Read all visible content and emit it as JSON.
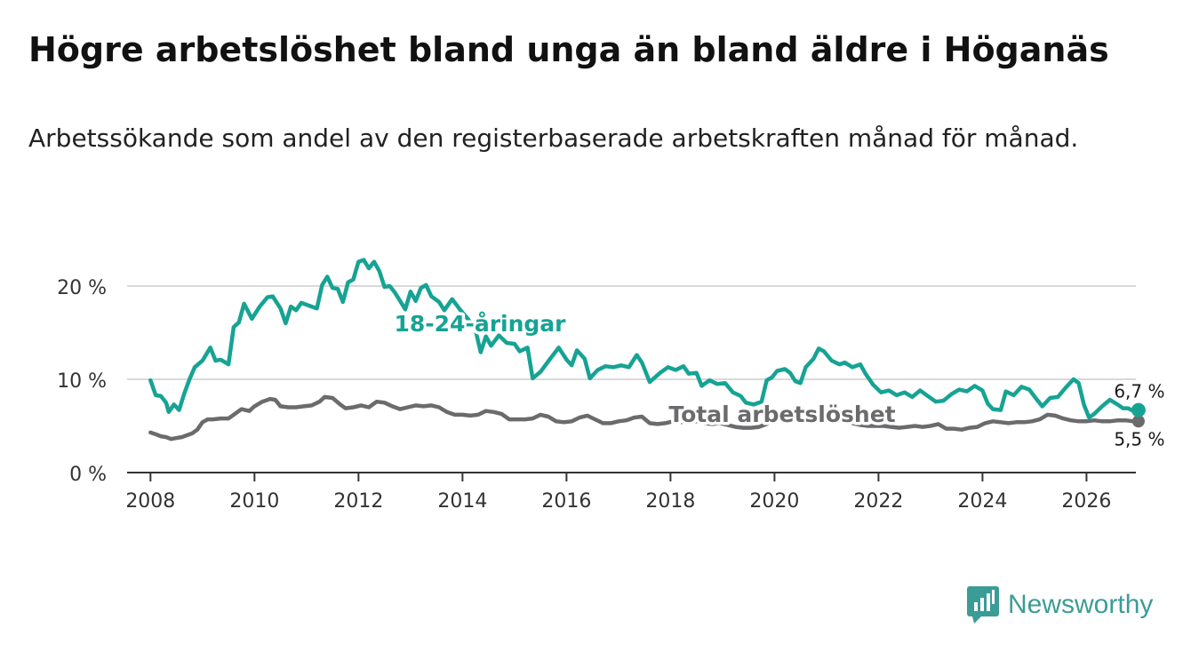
{
  "title": "Högre arbetslöshet bland unga än bland äldre i Höganäs",
  "subtitle": "Arbetssökande som andel av den registerbaserade arbetskraften månad för månad.",
  "brand": {
    "name": "Newsworthy"
  },
  "colors": {
    "youth": "#16a394",
    "total": "#6b6b6e",
    "grid": "#d9d9d9",
    "axis": "#333333",
    "brand": "#3b9c96"
  },
  "chart_data": {
    "type": "line",
    "title": "Högre arbetslöshet bland unga än bland äldre i Höganäs",
    "xlabel": "",
    "ylabel": "",
    "xlim": [
      2007.55,
      2026.95
    ],
    "ylim": [
      0,
      20
    ],
    "x_ticks": [
      2008,
      2010,
      2012,
      2014,
      2016,
      2018,
      2020,
      2022,
      2024,
      2026
    ],
    "y_ticks": [
      {
        "value": 0,
        "label": "0 %"
      },
      {
        "value": 10,
        "label": "10 %"
      },
      {
        "value": 20,
        "label": "20 %"
      }
    ],
    "grid": true,
    "series": [
      {
        "name": "18-24-åringar",
        "color": "#16a394",
        "last_label": "6,7 %",
        "points": [
          [
            2008.0,
            9.9
          ],
          [
            2008.1,
            8.3
          ],
          [
            2008.2,
            8.2
          ],
          [
            2008.3,
            7.5
          ],
          [
            2008.35,
            6.5
          ],
          [
            2008.45,
            7.3
          ],
          [
            2008.55,
            6.7
          ],
          [
            2008.65,
            8.5
          ],
          [
            2008.75,
            10.0
          ],
          [
            2008.85,
            11.3
          ],
          [
            2009.0,
            12.0
          ],
          [
            2009.15,
            13.4
          ],
          [
            2009.25,
            12.0
          ],
          [
            2009.35,
            12.1
          ],
          [
            2009.5,
            11.6
          ],
          [
            2009.6,
            15.6
          ],
          [
            2009.7,
            16.1
          ],
          [
            2009.8,
            18.1
          ],
          [
            2009.95,
            16.5
          ],
          [
            2010.1,
            17.8
          ],
          [
            2010.25,
            18.8
          ],
          [
            2010.35,
            18.9
          ],
          [
            2010.5,
            17.6
          ],
          [
            2010.6,
            16.0
          ],
          [
            2010.7,
            17.8
          ],
          [
            2010.8,
            17.4
          ],
          [
            2010.9,
            18.2
          ],
          [
            2011.05,
            17.9
          ],
          [
            2011.2,
            17.6
          ],
          [
            2011.3,
            20.1
          ],
          [
            2011.4,
            21.0
          ],
          [
            2011.5,
            19.8
          ],
          [
            2011.6,
            19.7
          ],
          [
            2011.7,
            18.3
          ],
          [
            2011.8,
            20.4
          ],
          [
            2011.9,
            20.7
          ],
          [
            2012.0,
            22.6
          ],
          [
            2012.1,
            22.8
          ],
          [
            2012.2,
            21.9
          ],
          [
            2012.3,
            22.6
          ],
          [
            2012.4,
            21.6
          ],
          [
            2012.5,
            19.9
          ],
          [
            2012.6,
            20.0
          ],
          [
            2012.7,
            19.3
          ],
          [
            2012.8,
            18.4
          ],
          [
            2012.9,
            17.5
          ],
          [
            2013.0,
            19.4
          ],
          [
            2013.1,
            18.4
          ],
          [
            2013.2,
            19.8
          ],
          [
            2013.3,
            20.1
          ],
          [
            2013.4,
            18.9
          ],
          [
            2013.55,
            18.3
          ],
          [
            2013.65,
            17.4
          ],
          [
            2013.8,
            18.6
          ],
          [
            2013.95,
            17.5
          ],
          [
            2014.1,
            16.5
          ],
          [
            2014.25,
            15.3
          ],
          [
            2014.35,
            12.9
          ],
          [
            2014.45,
            14.6
          ],
          [
            2014.55,
            13.6
          ],
          [
            2014.7,
            14.7
          ],
          [
            2014.85,
            13.9
          ],
          [
            2015.0,
            13.8
          ],
          [
            2015.1,
            13.0
          ],
          [
            2015.25,
            13.4
          ],
          [
            2015.35,
            10.1
          ],
          [
            2015.5,
            10.8
          ],
          [
            2015.7,
            12.3
          ],
          [
            2015.85,
            13.4
          ],
          [
            2016.0,
            12.1
          ],
          [
            2016.1,
            11.5
          ],
          [
            2016.2,
            13.1
          ],
          [
            2016.35,
            12.2
          ],
          [
            2016.45,
            10.1
          ],
          [
            2016.6,
            11.0
          ],
          [
            2016.75,
            11.4
          ],
          [
            2016.9,
            11.3
          ],
          [
            2017.05,
            11.5
          ],
          [
            2017.2,
            11.3
          ],
          [
            2017.35,
            12.6
          ],
          [
            2017.45,
            11.8
          ],
          [
            2017.6,
            9.7
          ],
          [
            2017.8,
            10.7
          ],
          [
            2017.95,
            11.3
          ],
          [
            2018.1,
            11.0
          ],
          [
            2018.25,
            11.4
          ],
          [
            2018.35,
            10.6
          ],
          [
            2018.5,
            10.7
          ],
          [
            2018.6,
            9.3
          ],
          [
            2018.75,
            9.9
          ],
          [
            2018.9,
            9.5
          ],
          [
            2019.05,
            9.6
          ],
          [
            2019.2,
            8.6
          ],
          [
            2019.35,
            8.2
          ],
          [
            2019.45,
            7.5
          ],
          [
            2019.6,
            7.3
          ],
          [
            2019.75,
            7.6
          ],
          [
            2019.85,
            9.9
          ],
          [
            2019.95,
            10.2
          ],
          [
            2020.05,
            10.9
          ],
          [
            2020.2,
            11.1
          ],
          [
            2020.3,
            10.7
          ],
          [
            2020.4,
            9.8
          ],
          [
            2020.5,
            9.6
          ],
          [
            2020.6,
            11.3
          ],
          [
            2020.75,
            12.2
          ],
          [
            2020.85,
            13.3
          ],
          [
            2020.95,
            13.0
          ],
          [
            2021.1,
            12.0
          ],
          [
            2021.25,
            11.6
          ],
          [
            2021.35,
            11.8
          ],
          [
            2021.5,
            11.3
          ],
          [
            2021.65,
            11.6
          ],
          [
            2021.75,
            10.6
          ],
          [
            2021.9,
            9.4
          ],
          [
            2022.05,
            8.6
          ],
          [
            2022.2,
            8.8
          ],
          [
            2022.35,
            8.3
          ],
          [
            2022.5,
            8.6
          ],
          [
            2022.65,
            8.1
          ],
          [
            2022.8,
            8.8
          ],
          [
            2022.95,
            8.2
          ],
          [
            2023.1,
            7.6
          ],
          [
            2023.25,
            7.7
          ],
          [
            2023.4,
            8.4
          ],
          [
            2023.55,
            8.9
          ],
          [
            2023.7,
            8.7
          ],
          [
            2023.85,
            9.3
          ],
          [
            2024.0,
            8.8
          ],
          [
            2024.1,
            7.4
          ],
          [
            2024.2,
            6.8
          ],
          [
            2024.35,
            6.7
          ],
          [
            2024.45,
            8.7
          ],
          [
            2024.6,
            8.3
          ],
          [
            2024.75,
            9.2
          ],
          [
            2024.9,
            8.9
          ],
          [
            2025.05,
            7.8
          ],
          [
            2025.15,
            7.1
          ],
          [
            2025.3,
            8.0
          ],
          [
            2025.45,
            8.1
          ],
          [
            2025.6,
            9.1
          ],
          [
            2025.75,
            10.0
          ],
          [
            2025.85,
            9.6
          ],
          [
            2025.95,
            7.3
          ],
          [
            2026.05,
            5.9
          ],
          [
            2026.15,
            6.3
          ],
          [
            2026.3,
            7.1
          ],
          [
            2026.45,
            7.8
          ],
          [
            2026.6,
            7.3
          ],
          [
            2026.7,
            6.9
          ],
          [
            2026.8,
            6.9
          ],
          [
            2026.9,
            6.6
          ],
          [
            2027.0,
            6.7
          ]
        ]
      },
      {
        "name": "Total arbetslöshet",
        "color": "#6b6b6e",
        "last_label": "5,5 %",
        "points": [
          [
            2008.0,
            4.3
          ],
          [
            2008.1,
            4.1
          ],
          [
            2008.2,
            3.9
          ],
          [
            2008.3,
            3.8
          ],
          [
            2008.4,
            3.6
          ],
          [
            2008.5,
            3.7
          ],
          [
            2008.6,
            3.8
          ],
          [
            2008.7,
            4.0
          ],
          [
            2008.8,
            4.2
          ],
          [
            2008.9,
            4.6
          ],
          [
            2009.0,
            5.4
          ],
          [
            2009.1,
            5.7
          ],
          [
            2009.2,
            5.7
          ],
          [
            2009.35,
            5.8
          ],
          [
            2009.5,
            5.8
          ],
          [
            2009.6,
            6.2
          ],
          [
            2009.75,
            6.8
          ],
          [
            2009.9,
            6.6
          ],
          [
            2010.0,
            7.1
          ],
          [
            2010.15,
            7.6
          ],
          [
            2010.3,
            7.9
          ],
          [
            2010.4,
            7.8
          ],
          [
            2010.5,
            7.1
          ],
          [
            2010.65,
            7.0
          ],
          [
            2010.8,
            7.0
          ],
          [
            2010.95,
            7.1
          ],
          [
            2011.1,
            7.2
          ],
          [
            2011.25,
            7.6
          ],
          [
            2011.35,
            8.1
          ],
          [
            2011.5,
            8.0
          ],
          [
            2011.65,
            7.3
          ],
          [
            2011.75,
            6.9
          ],
          [
            2011.9,
            7.0
          ],
          [
            2012.05,
            7.2
          ],
          [
            2012.2,
            7.0
          ],
          [
            2012.35,
            7.6
          ],
          [
            2012.5,
            7.5
          ],
          [
            2012.65,
            7.1
          ],
          [
            2012.8,
            6.8
          ],
          [
            2012.95,
            7.0
          ],
          [
            2013.1,
            7.2
          ],
          [
            2013.25,
            7.1
          ],
          [
            2013.4,
            7.2
          ],
          [
            2013.55,
            7.0
          ],
          [
            2013.7,
            6.5
          ],
          [
            2013.85,
            6.2
          ],
          [
            2014.0,
            6.2
          ],
          [
            2014.15,
            6.1
          ],
          [
            2014.3,
            6.2
          ],
          [
            2014.45,
            6.6
          ],
          [
            2014.6,
            6.5
          ],
          [
            2014.75,
            6.3
          ],
          [
            2014.9,
            5.7
          ],
          [
            2015.05,
            5.7
          ],
          [
            2015.2,
            5.7
          ],
          [
            2015.35,
            5.8
          ],
          [
            2015.5,
            6.2
          ],
          [
            2015.65,
            6.0
          ],
          [
            2015.8,
            5.5
          ],
          [
            2015.95,
            5.4
          ],
          [
            2016.1,
            5.5
          ],
          [
            2016.25,
            5.9
          ],
          [
            2016.4,
            6.1
          ],
          [
            2016.55,
            5.7
          ],
          [
            2016.7,
            5.3
          ],
          [
            2016.85,
            5.3
          ],
          [
            2017.0,
            5.5
          ],
          [
            2017.15,
            5.6
          ],
          [
            2017.3,
            5.9
          ],
          [
            2017.45,
            6.0
          ],
          [
            2017.6,
            5.3
          ],
          [
            2017.75,
            5.2
          ],
          [
            2017.9,
            5.3
          ],
          [
            2018.05,
            5.5
          ],
          [
            2018.2,
            5.4
          ],
          [
            2018.35,
            5.6
          ],
          [
            2018.5,
            5.5
          ],
          [
            2018.65,
            5.3
          ],
          [
            2018.8,
            5.2
          ],
          [
            2018.95,
            5.3
          ],
          [
            2019.1,
            5.1
          ],
          [
            2019.25,
            4.9
          ],
          [
            2019.4,
            4.8
          ],
          [
            2019.55,
            4.8
          ],
          [
            2019.7,
            4.9
          ],
          [
            2019.85,
            5.2
          ],
          [
            2020.0,
            5.6
          ],
          [
            2020.15,
            5.8
          ],
          [
            2020.3,
            6.0
          ],
          [
            2020.45,
            6.3
          ],
          [
            2020.6,
            6.6
          ],
          [
            2020.75,
            6.3
          ],
          [
            2020.9,
            6.1
          ],
          [
            2021.05,
            5.8
          ],
          [
            2021.2,
            5.6
          ],
          [
            2021.35,
            5.5
          ],
          [
            2021.5,
            5.3
          ],
          [
            2021.65,
            5.1
          ],
          [
            2021.8,
            5.0
          ],
          [
            2021.95,
            5.0
          ],
          [
            2022.1,
            5.0
          ],
          [
            2022.25,
            4.9
          ],
          [
            2022.4,
            4.8
          ],
          [
            2022.55,
            4.9
          ],
          [
            2022.7,
            5.0
          ],
          [
            2022.85,
            4.9
          ],
          [
            2023.0,
            5.0
          ],
          [
            2023.15,
            5.2
          ],
          [
            2023.3,
            4.7
          ],
          [
            2023.45,
            4.7
          ],
          [
            2023.6,
            4.6
          ],
          [
            2023.75,
            4.8
          ],
          [
            2023.9,
            4.9
          ],
          [
            2024.05,
            5.3
          ],
          [
            2024.2,
            5.5
          ],
          [
            2024.35,
            5.4
          ],
          [
            2024.5,
            5.3
          ],
          [
            2024.65,
            5.4
          ],
          [
            2024.8,
            5.4
          ],
          [
            2024.95,
            5.5
          ],
          [
            2025.1,
            5.7
          ],
          [
            2025.25,
            6.2
          ],
          [
            2025.4,
            6.1
          ],
          [
            2025.55,
            5.8
          ],
          [
            2025.7,
            5.6
          ],
          [
            2025.85,
            5.5
          ],
          [
            2026.0,
            5.5
          ],
          [
            2026.15,
            5.6
          ],
          [
            2026.3,
            5.5
          ],
          [
            2026.45,
            5.5
          ],
          [
            2026.6,
            5.6
          ],
          [
            2026.75,
            5.6
          ],
          [
            2026.9,
            5.5
          ],
          [
            2027.0,
            5.5
          ]
        ]
      }
    ],
    "annotations": [
      {
        "series": "18-24-åringar",
        "text": "18-24-åringar"
      },
      {
        "series": "Total arbetslöshet",
        "text": "Total arbetslöshet"
      }
    ]
  }
}
